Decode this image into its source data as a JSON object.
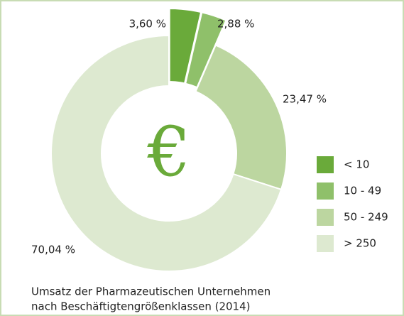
{
  "chart_data": {
    "type": "pie",
    "donut": true,
    "categories": [
      "< 10",
      "10 - 49",
      "50 - 249",
      "> 250"
    ],
    "values": [
      3.6,
      2.88,
      23.47,
      70.04
    ],
    "value_labels": [
      "3,60 %",
      "2,88 %",
      "23,47 %",
      "70,04 %"
    ],
    "colors": [
      "#6aaa3a",
      "#8fc06a",
      "#bcd6a0",
      "#dde9d0"
    ],
    "explode": [
      true,
      true,
      false,
      false
    ],
    "center_label": "€",
    "caption": [
      "Umsatz der Pharmazeutischen Unternehmen",
      "nach Beschäftigtengrößenklassen (2014)"
    ],
    "legend": "right"
  }
}
